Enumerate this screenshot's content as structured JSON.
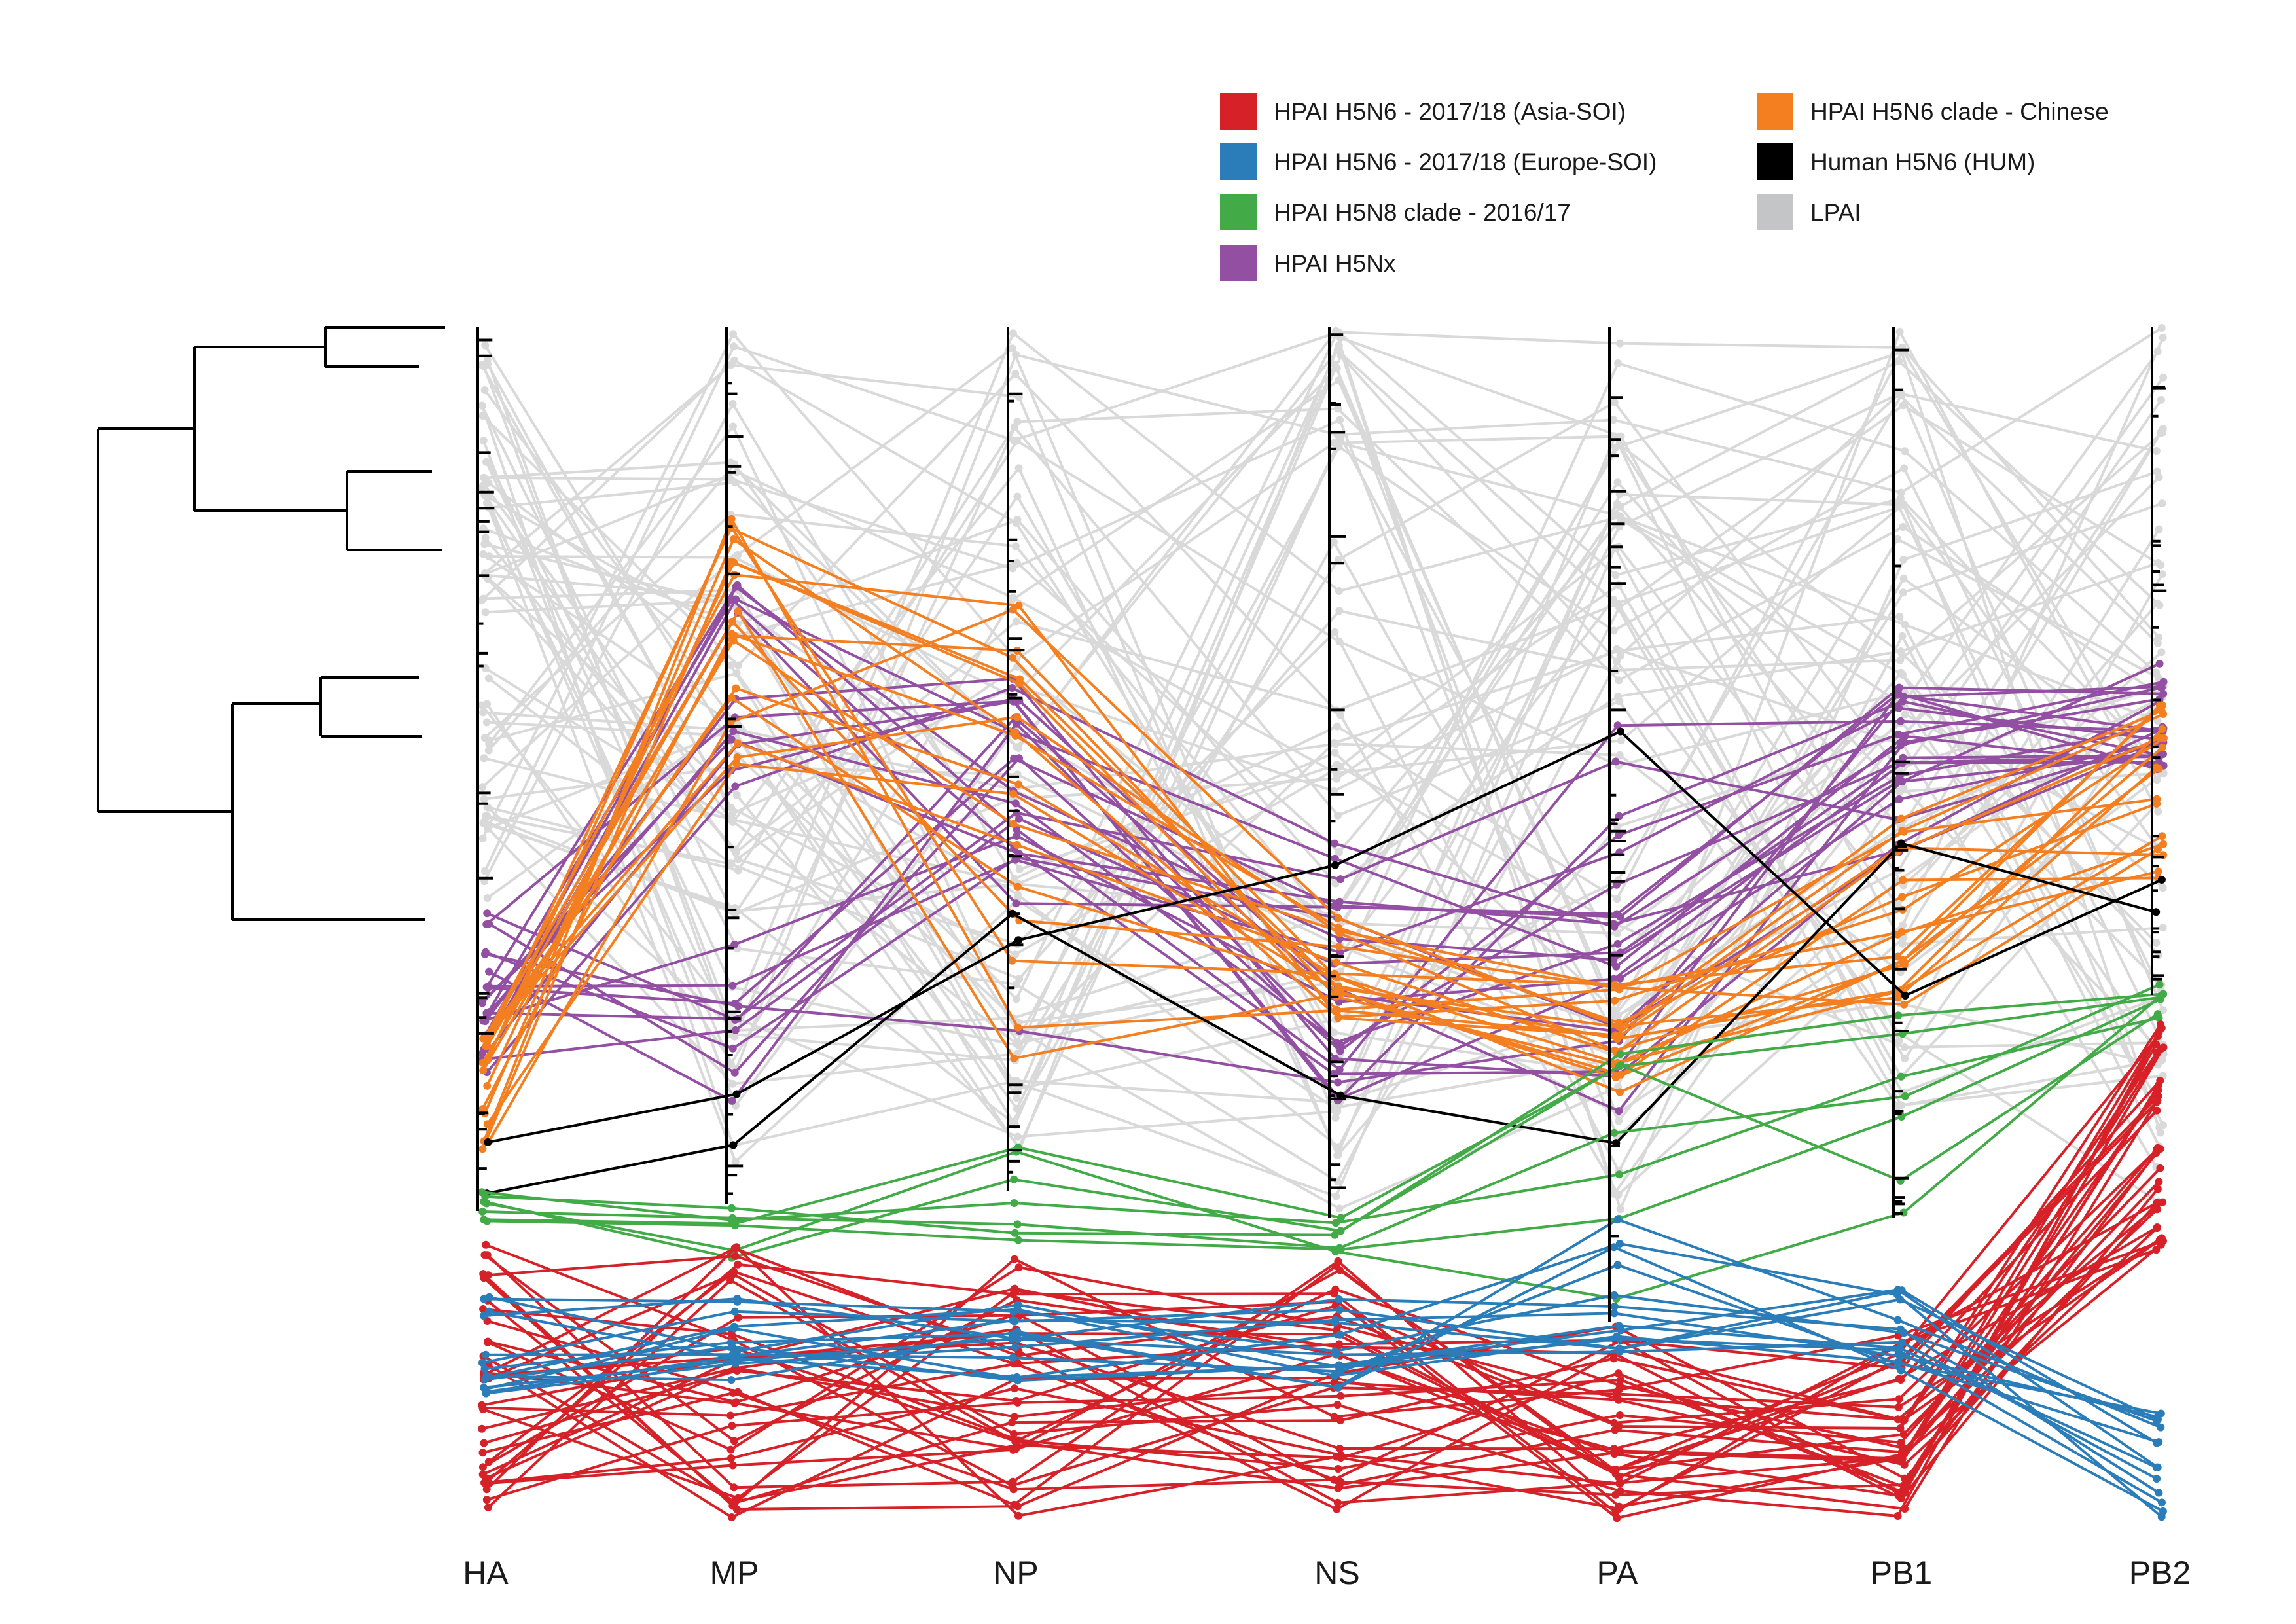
{
  "legend": {
    "items": [
      {
        "label": "HPAI H5N6 - 2017/18 (Asia-SOI)",
        "color": "#d62128"
      },
      {
        "label": "HPAI H5N6 - 2017/18 (Europe-SOI)",
        "color": "#2a7db8"
      },
      {
        "label": "HPAI H5N8 clade - 2016/17",
        "color": "#42ab47"
      },
      {
        "label": "HPAI H5Nx",
        "color": "#9350a2"
      },
      {
        "label": "HPAI H5N6 clade - Chinese",
        "color": "#f37f21"
      },
      {
        "label": "Human H5N6 (HUM)",
        "color": "#000000"
      },
      {
        "label": "LPAI",
        "color": "#c4c5c7"
      }
    ]
  },
  "segments": [
    "HA",
    "MP",
    "NP",
    "NS",
    "PA",
    "PB1",
    "PB2"
  ],
  "tanglegram": {
    "groups": [
      {
        "name": "LPAI",
        "color": "#d9d9d9",
        "lines": 60
      },
      {
        "name": "HPAI H5Nx",
        "color": "#9350a2",
        "lines": 22
      },
      {
        "name": "HPAI H5N6 clade - Chinese",
        "color": "#f37f21",
        "lines": 18
      },
      {
        "name": "Human H5N6 (HUM)",
        "color": "#000000",
        "lines": 2
      },
      {
        "name": "HPAI H5N8 clade - 2016/17",
        "color": "#42ab47",
        "lines": 7
      },
      {
        "name": "HPAI H5N6 - 2017/18 (Asia-SOI)",
        "color": "#d62128",
        "lines": 34
      },
      {
        "name": "HPAI H5N6 - 2017/18 (Europe-SOI)",
        "color": "#2a7db8",
        "lines": 14
      }
    ]
  }
}
